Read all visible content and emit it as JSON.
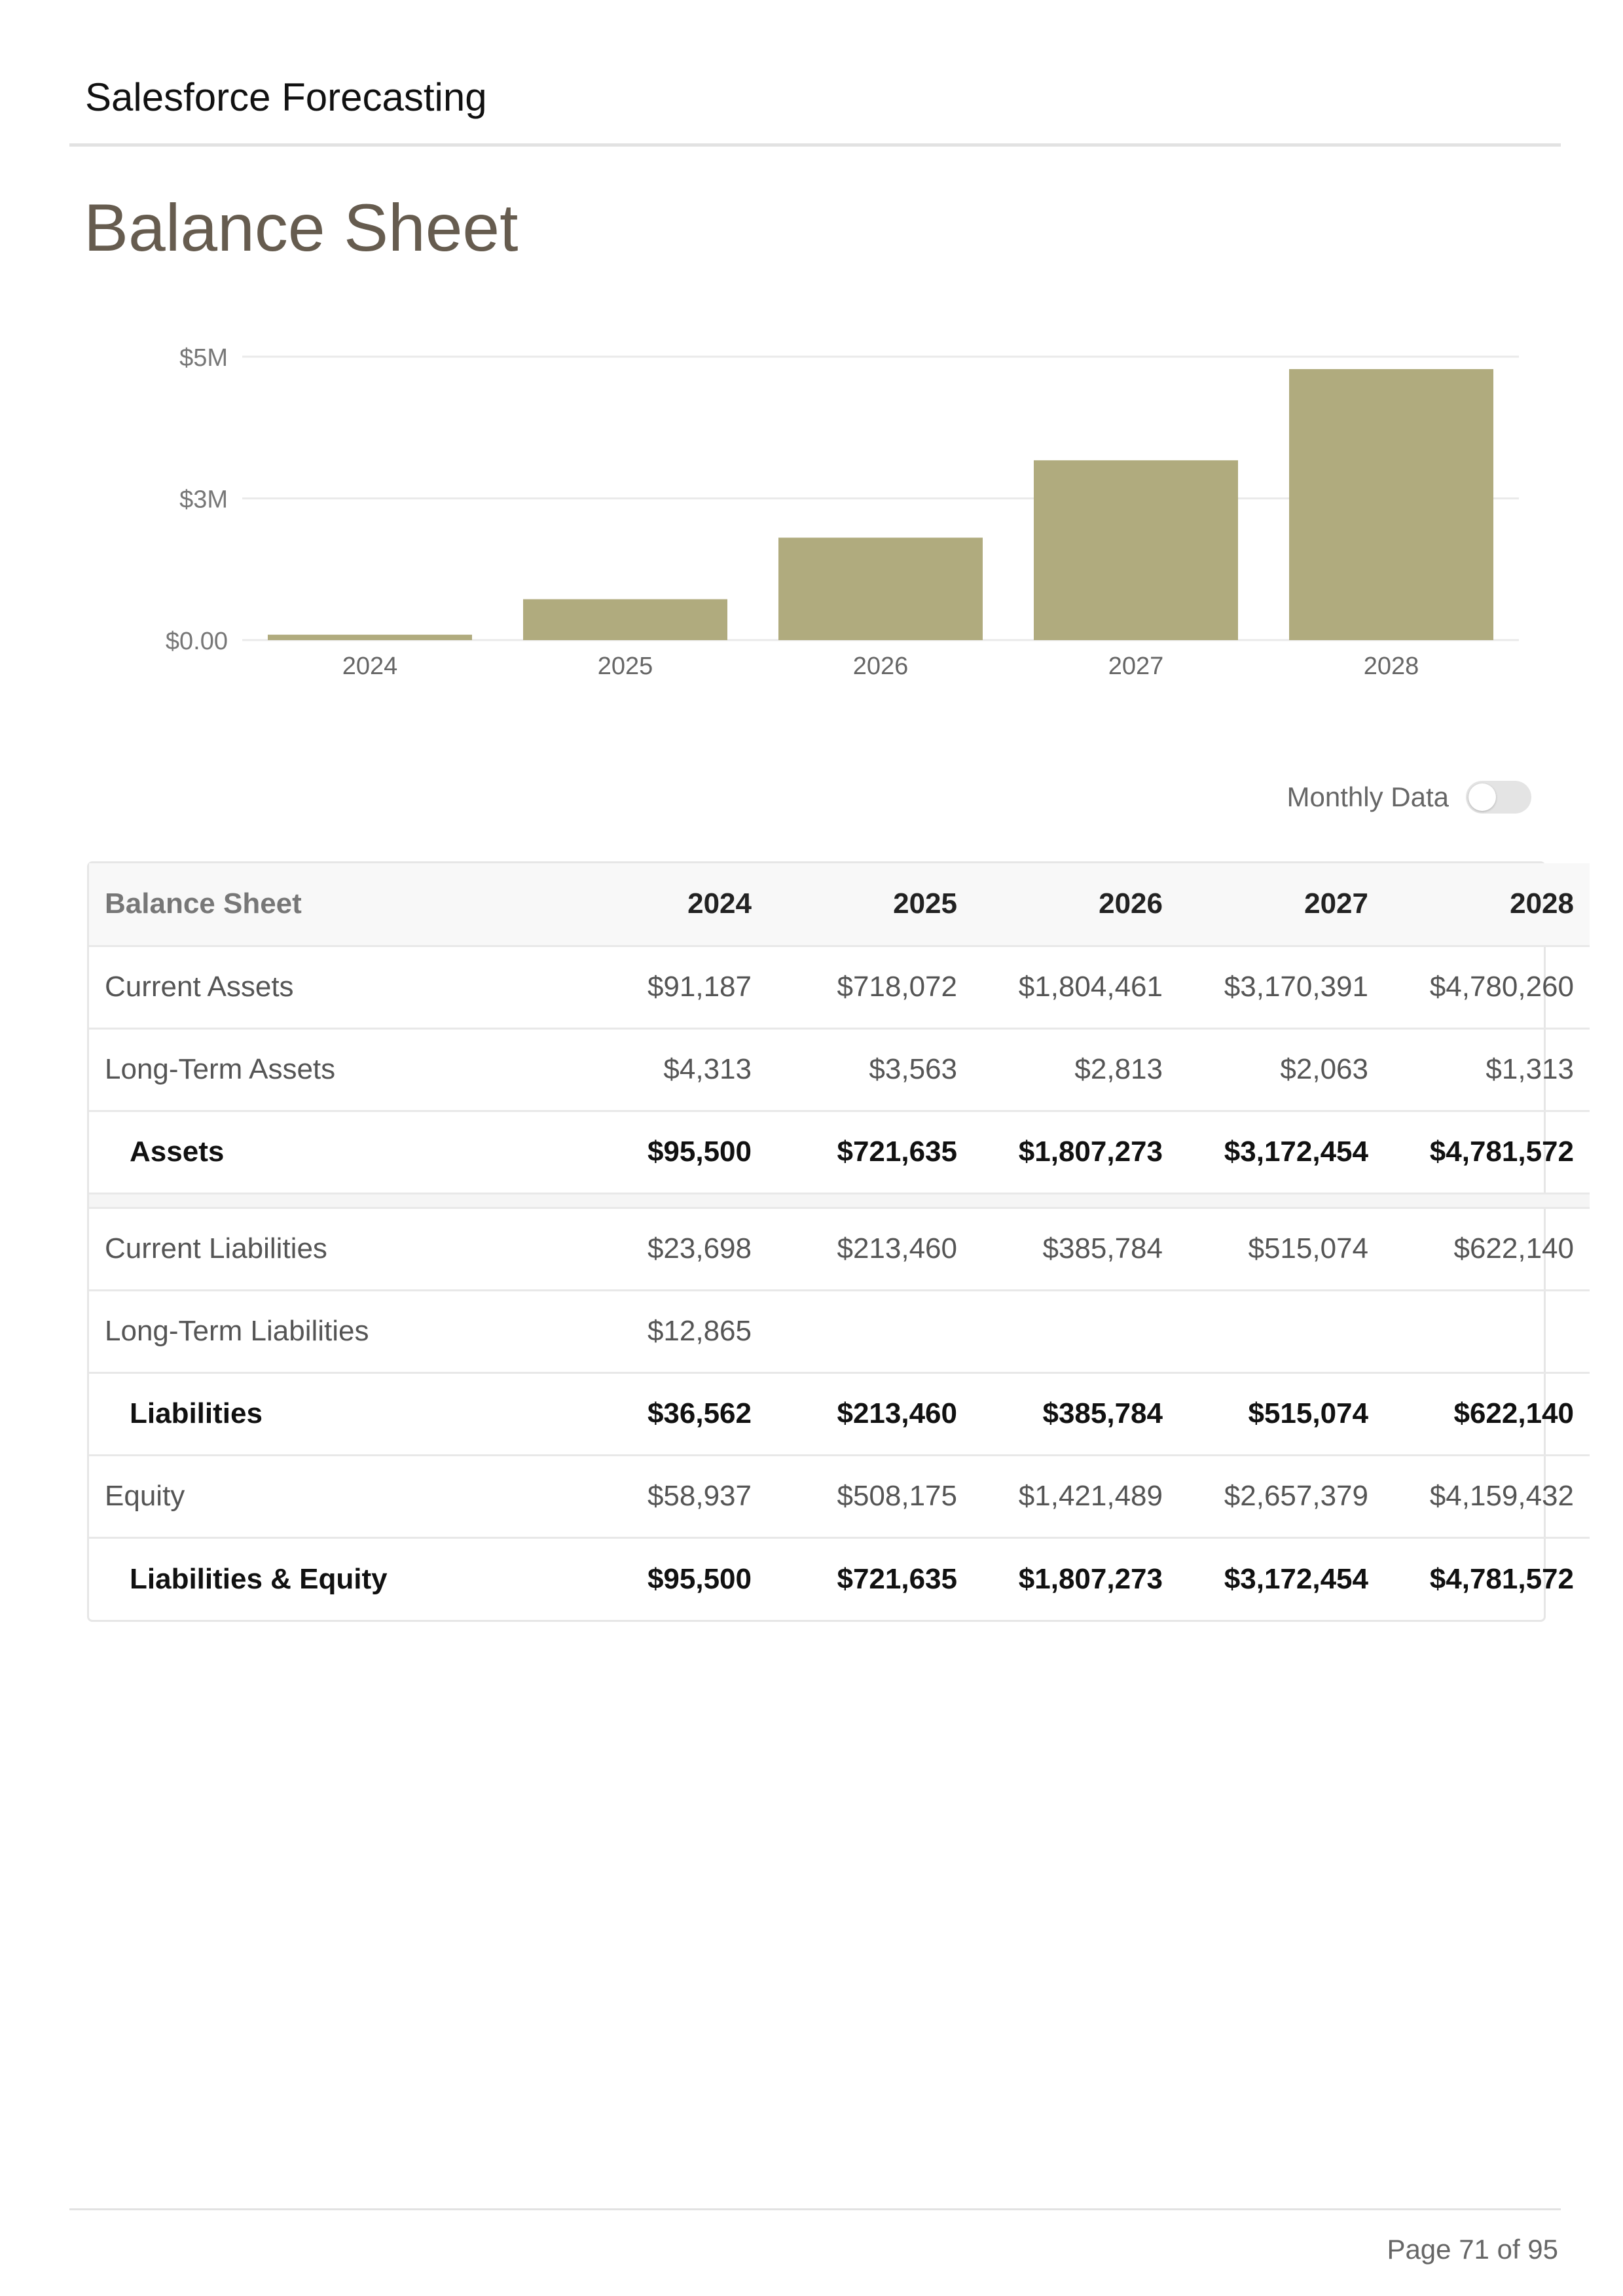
{
  "header": {
    "title": "Salesforce Forecasting"
  },
  "page_title": "Balance Sheet",
  "chart_data": {
    "type": "bar",
    "categories": [
      "2024",
      "2025",
      "2026",
      "2027",
      "2028"
    ],
    "values": [
      95500,
      721635,
      1807273,
      3172454,
      4781572
    ],
    "yticks": [
      {
        "value": 0,
        "label": "$0.00"
      },
      {
        "value": 2500000,
        "label": "$3M"
      },
      {
        "value": 5000000,
        "label": "$5M"
      }
    ],
    "ylim": [
      0,
      5000000
    ],
    "bar_color": "#b0ab7e",
    "grid": true
  },
  "toggle": {
    "label": "Monthly Data",
    "on": false
  },
  "table": {
    "headers": [
      "Balance Sheet",
      "2024",
      "2025",
      "2026",
      "2027",
      "2028"
    ],
    "rows": [
      {
        "type": "row",
        "cells": [
          "Current Assets",
          "$91,187",
          "$718,072",
          "$1,804,461",
          "$3,170,391",
          "$4,780,260"
        ]
      },
      {
        "type": "row",
        "cells": [
          "Long-Term Assets",
          "$4,313",
          "$3,563",
          "$2,813",
          "$2,063",
          "$1,313"
        ]
      },
      {
        "type": "total",
        "cells": [
          "Assets",
          "$95,500",
          "$721,635",
          "$1,807,273",
          "$3,172,454",
          "$4,781,572"
        ]
      },
      {
        "type": "spacer",
        "cells": [
          "",
          "",
          "",
          "",
          "",
          ""
        ]
      },
      {
        "type": "row",
        "cells": [
          "Current Liabilities",
          "$23,698",
          "$213,460",
          "$385,784",
          "$515,074",
          "$622,140"
        ]
      },
      {
        "type": "row",
        "cells": [
          "Long-Term Liabilities",
          "$12,865",
          "",
          "",
          "",
          ""
        ]
      },
      {
        "type": "total",
        "cells": [
          "Liabilities",
          "$36,562",
          "$213,460",
          "$385,784",
          "$515,074",
          "$622,140"
        ]
      },
      {
        "type": "row",
        "cells": [
          "Equity",
          "$58,937",
          "$508,175",
          "$1,421,489",
          "$2,657,379",
          "$4,159,432"
        ]
      },
      {
        "type": "total",
        "cells": [
          "Liabilities & Equity",
          "$95,500",
          "$721,635",
          "$1,807,273",
          "$3,172,454",
          "$4,781,572"
        ]
      }
    ]
  },
  "footer": {
    "page": "Page 71 of 95"
  }
}
